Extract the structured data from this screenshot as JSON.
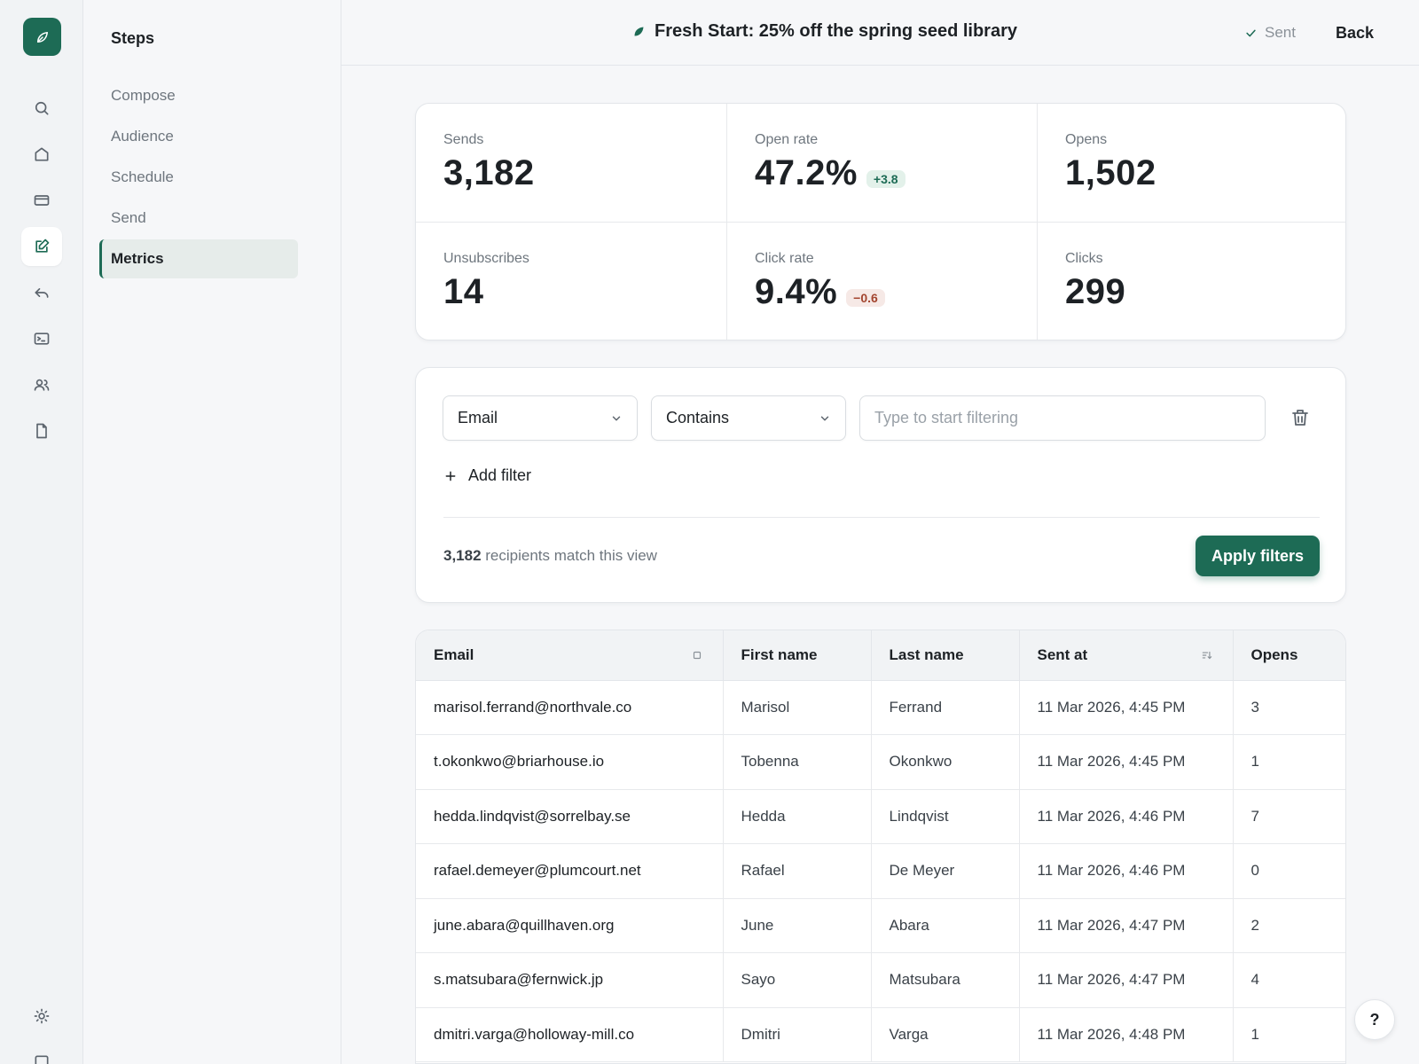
{
  "campaign": {
    "title": "Fresh Start: 25% off the spring seed library",
    "status": "Sent",
    "back_label": "Back"
  },
  "rail": {
    "icons": [
      "search-icon",
      "home-icon",
      "card-icon",
      "edit-icon",
      "undo-icon",
      "terminal-icon",
      "users-icon",
      "file-icon",
      "sun-icon"
    ],
    "active": "edit-icon"
  },
  "steps": {
    "title": "Steps",
    "items": [
      "Compose",
      "Audience",
      "Schedule",
      "Send",
      "Metrics"
    ],
    "active": "Metrics"
  },
  "metrics": {
    "sends": {
      "label": "Sends",
      "value": "3,182"
    },
    "open_rate": {
      "label": "Open rate",
      "value": "47.2%",
      "delta": "+3.8"
    },
    "opens": {
      "label": "Opens",
      "value": "1,502"
    },
    "unsubscribes": {
      "label": "Unsubscribes",
      "value": "14"
    },
    "click_rate": {
      "label": "Click rate",
      "value": "9.4%",
      "delta": "−0.6"
    },
    "clicks": {
      "label": "Clicks",
      "value": "299"
    }
  },
  "filters": {
    "field": "Email",
    "operator": "Contains",
    "placeholder": "Type to start filtering",
    "add_label": "Add filter",
    "match_count": "3,182",
    "match_suffix": " recipients match this view",
    "apply_label": "Apply filters"
  },
  "table": {
    "columns": [
      "Email",
      "First name",
      "Last name",
      "Sent at",
      "Opens"
    ],
    "rows": [
      [
        "marisol.ferrand@northvale.co",
        "Marisol",
        "Ferrand",
        "11 Mar 2026, 4:45 PM",
        "3"
      ],
      [
        "t.okonkwo@briarhouse.io",
        "Tobenna",
        "Okonkwo",
        "11 Mar 2026, 4:45 PM",
        "1"
      ],
      [
        "hedda.lindqvist@sorrelbay.se",
        "Hedda",
        "Lindqvist",
        "11 Mar 2026, 4:46 PM",
        "7"
      ],
      [
        "rafael.demeyer@plumcourt.net",
        "Rafael",
        "De Meyer",
        "11 Mar 2026, 4:46 PM",
        "0"
      ],
      [
        "june.abara@quillhaven.org",
        "June",
        "Abara",
        "11 Mar 2026, 4:47 PM",
        "2"
      ],
      [
        "s.matsubara@fernwick.jp",
        "Sayo",
        "Matsubara",
        "11 Mar 2026, 4:47 PM",
        "4"
      ],
      [
        "dmitri.varga@holloway-mill.co",
        "Dmitri",
        "Varga",
        "11 Mar 2026, 4:48 PM",
        "1"
      ]
    ]
  },
  "help_label": "?",
  "colors": {
    "brand": "#1d6b55",
    "positive_bg": "#e3f1ea",
    "negative_bg": "#f6e9e6",
    "negative_text": "#a3452f"
  }
}
